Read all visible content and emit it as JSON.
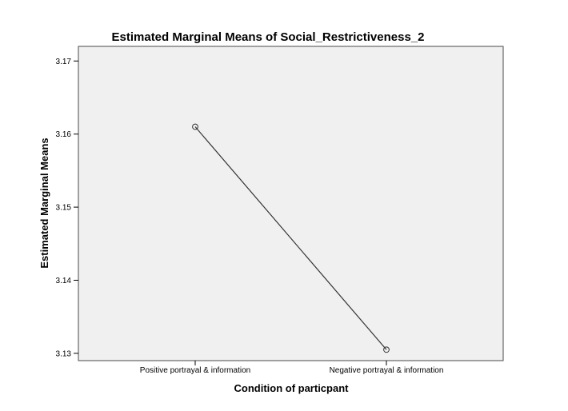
{
  "chart_data": {
    "type": "line",
    "title": "Estimated Marginal Means of Social_Restrictiveness_2",
    "xlabel": "Condition of particpant",
    "ylabel": "Estimated Marginal Means",
    "categories": [
      "Positive portrayal & information",
      "Negative portrayal & information"
    ],
    "series": [
      {
        "values": [
          3.161,
          3.1305
        ]
      }
    ],
    "ylim": [
      3.129,
      3.172
    ],
    "y_ticks": [
      "3.13",
      "3.14",
      "3.15",
      "3.16",
      "3.17"
    ],
    "y_tick_values": [
      3.13,
      3.14,
      3.15,
      3.16,
      3.17
    ],
    "grid": false,
    "legend": "none",
    "line_color": "#333333",
    "plot_background": "#f0f0f0"
  }
}
